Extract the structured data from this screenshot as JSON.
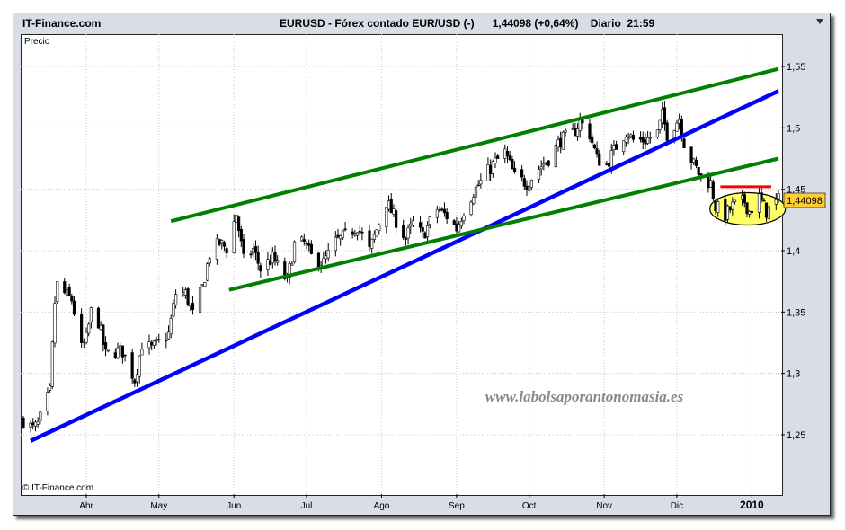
{
  "header": {
    "brand": "IT-Finance.com",
    "instrument": "EURUSD - Fórex contado EUR/USD (-)",
    "price_info": "1,44098 (+0,64%)",
    "period": "Diario  21:59"
  },
  "plot": {
    "panel_label": "Precio",
    "copyright": "© IT-Finance.com",
    "watermark": "www.labolsaporantonomasia.es",
    "last_price_label": "1,44098"
  },
  "chart_data": {
    "type": "candlestick",
    "title": "EURUSD - Fórex contado EUR/USD (-)",
    "ylabel": "Precio",
    "x_tick_labels": [
      "Abr",
      "May",
      "Jun",
      "Jul",
      "Ago",
      "Sep",
      "Oct",
      "Nov",
      "Dic",
      "2010"
    ],
    "y_tick_labels": [
      "1,25",
      "1,3",
      "1,35",
      "1,4",
      "1,45",
      "1,5",
      "1,55"
    ],
    "y_ticks": [
      1.25,
      1.3,
      1.35,
      1.4,
      1.45,
      1.5,
      1.55
    ],
    "ylim": [
      1.205,
      1.57
    ],
    "x_range": [
      "2009-03-06",
      "2010-01-12"
    ],
    "grid": true,
    "last_value": 1.44098,
    "change_percent": 0.64,
    "close_path": [
      [
        "2009-03-06",
        1.262
      ],
      [
        "2009-03-10",
        1.255
      ],
      [
        "2009-03-12",
        1.258
      ],
      [
        "2009-03-17",
        1.285
      ],
      [
        "2009-03-19",
        1.358
      ],
      [
        "2009-03-20",
        1.372
      ],
      [
        "2009-03-23",
        1.365
      ],
      [
        "2009-03-26",
        1.36
      ],
      [
        "2009-03-30",
        1.32
      ],
      [
        "2009-04-01",
        1.328
      ],
      [
        "2009-04-03",
        1.35
      ],
      [
        "2009-04-06",
        1.342
      ],
      [
        "2009-04-09",
        1.315
      ],
      [
        "2009-04-13",
        1.318
      ],
      [
        "2009-04-16",
        1.318
      ],
      [
        "2009-04-21",
        1.295
      ],
      [
        "2009-04-24",
        1.324
      ],
      [
        "2009-04-28",
        1.32
      ],
      [
        "2009-05-01",
        1.325
      ],
      [
        "2009-05-05",
        1.332
      ],
      [
        "2009-05-08",
        1.365
      ],
      [
        "2009-05-12",
        1.365
      ],
      [
        "2009-05-15",
        1.348
      ],
      [
        "2009-05-19",
        1.37
      ],
      [
        "2009-05-22",
        1.397
      ],
      [
        "2009-05-26",
        1.406
      ],
      [
        "2009-05-29",
        1.402
      ],
      [
        "2009-06-02",
        1.43
      ],
      [
        "2009-06-05",
        1.392
      ],
      [
        "2009-06-09",
        1.401
      ],
      [
        "2009-06-12",
        1.385
      ],
      [
        "2009-06-17",
        1.394
      ],
      [
        "2009-06-23",
        1.375
      ],
      [
        "2009-06-26",
        1.405
      ],
      [
        "2009-06-30",
        1.406
      ],
      [
        "2009-07-03",
        1.395
      ],
      [
        "2009-07-08",
        1.39
      ],
      [
        "2009-07-13",
        1.407
      ],
      [
        "2009-07-17",
        1.412
      ],
      [
        "2009-07-22",
        1.42
      ],
      [
        "2009-07-27",
        1.4
      ],
      [
        "2009-08-03",
        1.44
      ],
      [
        "2009-08-06",
        1.428
      ],
      [
        "2009-08-11",
        1.41
      ],
      [
        "2009-08-14",
        1.422
      ],
      [
        "2009-08-18",
        1.412
      ],
      [
        "2009-08-24",
        1.434
      ],
      [
        "2009-08-28",
        1.428
      ],
      [
        "2009-09-01",
        1.418
      ],
      [
        "2009-09-04",
        1.433
      ],
      [
        "2009-09-08",
        1.448
      ],
      [
        "2009-09-11",
        1.456
      ],
      [
        "2009-09-16",
        1.47
      ],
      [
        "2009-09-21",
        1.48
      ],
      [
        "2009-09-25",
        1.46
      ],
      [
        "2009-09-30",
        1.455
      ],
      [
        "2009-10-05",
        1.467
      ],
      [
        "2009-10-09",
        1.475
      ],
      [
        "2009-10-14",
        1.49
      ],
      [
        "2009-10-19",
        1.495
      ],
      [
        "2009-10-22",
        1.505
      ],
      [
        "2009-10-26",
        1.495
      ],
      [
        "2009-10-29",
        1.475
      ],
      [
        "2009-11-02",
        1.47
      ],
      [
        "2009-11-06",
        1.485
      ],
      [
        "2009-11-10",
        1.497
      ],
      [
        "2009-11-13",
        1.49
      ],
      [
        "2009-11-18",
        1.49
      ],
      [
        "2009-11-23",
        1.496
      ],
      [
        "2009-11-25",
        1.51
      ],
      [
        "2009-11-27",
        1.495
      ],
      [
        "2009-12-02",
        1.508
      ],
      [
        "2009-12-04",
        1.488
      ],
      [
        "2009-12-08",
        1.47
      ],
      [
        "2009-12-11",
        1.46
      ],
      [
        "2009-12-15",
        1.455
      ],
      [
        "2009-12-17",
        1.436
      ],
      [
        "2009-12-21",
        1.429
      ],
      [
        "2009-12-24",
        1.436
      ],
      [
        "2009-12-29",
        1.44
      ],
      [
        "2009-12-31",
        1.432
      ],
      [
        "2010-01-04",
        1.443
      ],
      [
        "2010-01-07",
        1.432
      ],
      [
        "2010-01-12",
        1.441
      ]
    ],
    "trendlines": [
      {
        "color": "#0000ff",
        "from": [
          "2009-03-09",
          1.245
        ],
        "to": [
          "2010-01-12",
          1.53
        ]
      },
      {
        "color": "#008000",
        "from": [
          "2009-05-06",
          1.424
        ],
        "to": [
          "2010-01-12",
          1.548
        ]
      },
      {
        "color": "#008000",
        "from": [
          "2009-05-30",
          1.368
        ],
        "to": [
          "2010-01-12",
          1.475
        ]
      },
      {
        "color": "#ff0000",
        "from": [
          "2009-12-19",
          1.452
        ],
        "to": [
          "2010-01-09",
          1.452
        ]
      }
    ],
    "highlight": {
      "center": [
        "2009-12-31",
        1.434
      ],
      "color": "#ffff66"
    },
    "colors": {
      "candle_up": "#ffffff",
      "candle_down": "#000000",
      "last_price_box": "#ffcc33",
      "watermark": "#8a8a8a"
    }
  }
}
